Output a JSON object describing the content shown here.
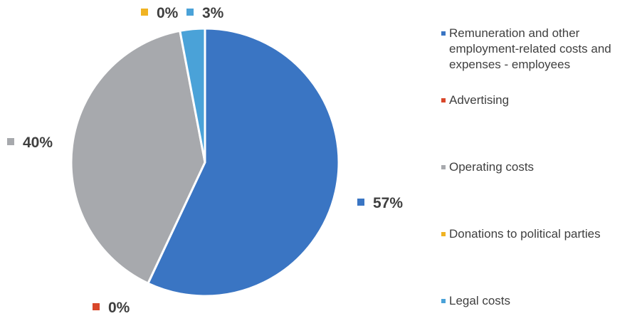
{
  "chart_data": {
    "type": "pie",
    "title": "",
    "slices": [
      {
        "label": "Remuneration and other employment-related costs and expenses - employees",
        "value": 57,
        "value_label": "57%",
        "color": "#3a75c3"
      },
      {
        "label": "Advertising",
        "value": 0,
        "value_label": "0%",
        "color": "#d9472a"
      },
      {
        "label": "Operating costs",
        "value": 40,
        "value_label": "40%",
        "color": "#a7a9ad"
      },
      {
        "label": "Donations to political parties",
        "value": 0,
        "value_label": "0%",
        "color": "#f0b323"
      },
      {
        "label": "Legal costs",
        "value": 3,
        "value_label": "3%",
        "color": "#4aa2d8"
      }
    ],
    "legend_position": "right",
    "start_angle_deg": 0,
    "direction": "clockwise"
  }
}
